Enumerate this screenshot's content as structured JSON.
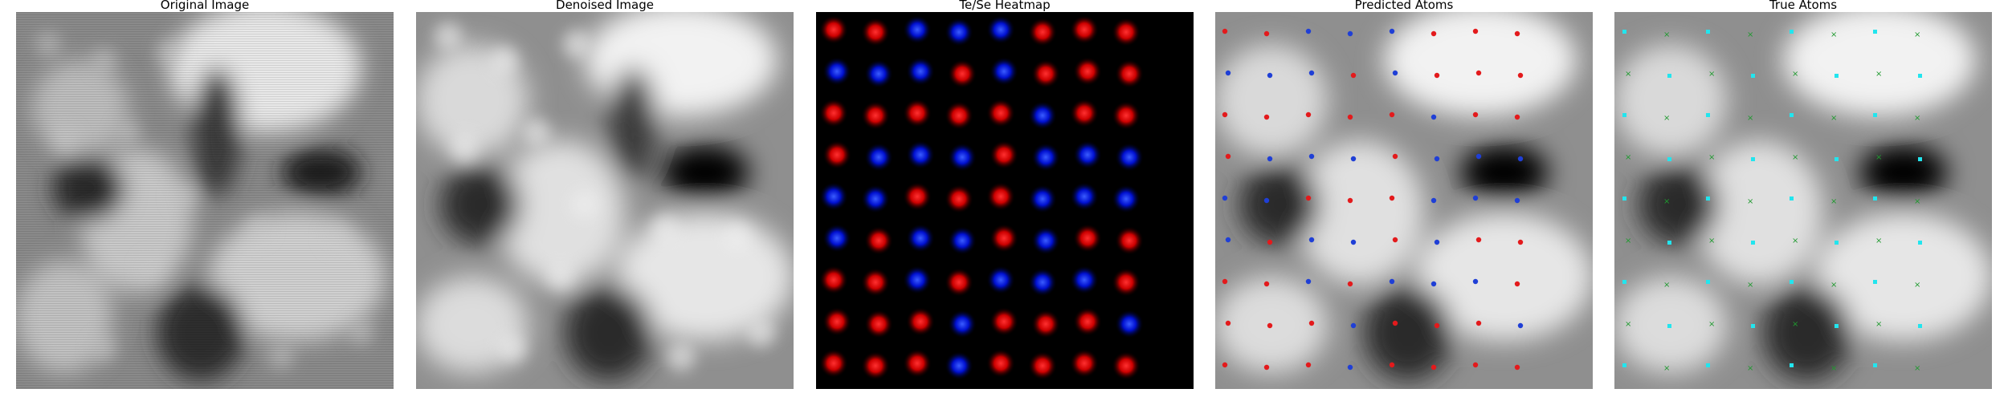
{
  "figure": {
    "panels": [
      {
        "id": "original",
        "title": "Original Image"
      },
      {
        "id": "denoised",
        "title": "Denoised Image"
      },
      {
        "id": "heatmap",
        "title": "Te/Se Heatmap"
      },
      {
        "id": "predicted",
        "title": "Predicted Atoms"
      },
      {
        "id": "true",
        "title": "True Atoms"
      }
    ],
    "colors": {
      "te": "#e31a1c",
      "se": "#1f3fd6",
      "true_cyan": "#22e5ee",
      "true_green": "#1f9a2f"
    }
  }
}
